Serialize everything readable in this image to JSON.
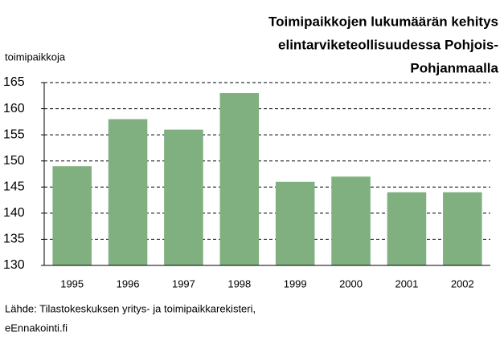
{
  "chart_data": {
    "type": "bar",
    "title": [
      "Toimipaikkojen lukumäärän kehitys",
      "elintarviketeollisuudessa Pohjois-",
      "Pohjanmaalla"
    ],
    "ylabel": "toimipaikkoja",
    "source": [
      "Lähde: Tilastokeskuksen yritys- ja toimipaikkarekisteri,",
      "eEnnakointi.fi"
    ],
    "categories": [
      "1995",
      "1996",
      "1997",
      "1998",
      "1999",
      "2000",
      "2001",
      "2002"
    ],
    "values": [
      149,
      158,
      156,
      163,
      146,
      147,
      144,
      144
    ],
    "color": "#80b080",
    "ylim": [
      130,
      165
    ],
    "yticks": [
      130,
      135,
      140,
      145,
      150,
      155,
      160,
      165
    ],
    "grid": true
  }
}
